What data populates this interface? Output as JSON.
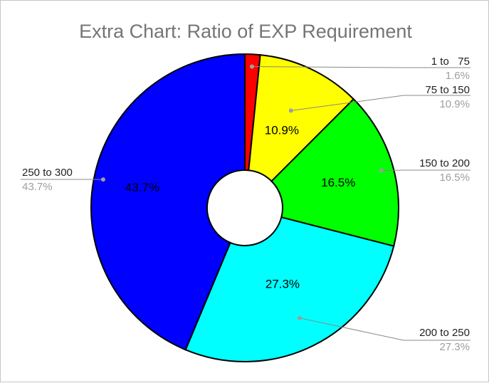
{
  "chart_data": {
    "type": "pie",
    "donut": true,
    "title": "Extra Chart: Ratio of EXP Requirement",
    "slices": [
      {
        "label": "1 to   75",
        "value": 1.6,
        "percent_label": "1.6%",
        "color": "#ff0000"
      },
      {
        "label": "75 to 150",
        "value": 10.9,
        "percent_label": "10.9%",
        "color": "#ffff00"
      },
      {
        "label": "150 to 200",
        "value": 16.5,
        "percent_label": "16.5%",
        "color": "#00ff00"
      },
      {
        "label": "200 to 250",
        "value": 27.3,
        "percent_label": "27.3%",
        "color": "#00ffff"
      },
      {
        "label": "250 to 300",
        "value": 43.7,
        "percent_label": "43.7%",
        "color": "#0000ff"
      }
    ],
    "legend": "none"
  }
}
